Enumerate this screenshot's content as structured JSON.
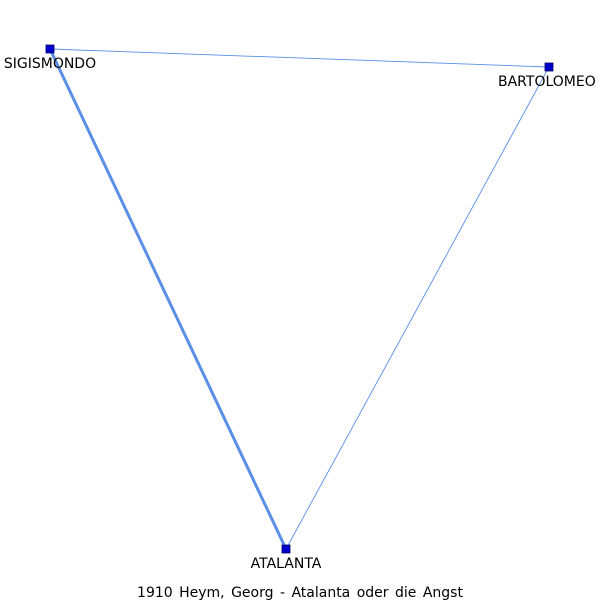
{
  "caption": "1910 Heym, Georg - Atalanta oder die Angst",
  "colors": {
    "edge": "#5b8fe6",
    "node_fill": "#0000cc",
    "node_stroke": "#000066"
  },
  "nodes": [
    {
      "id": "sigismondo",
      "label": "SIGISMONDO"
    },
    {
      "id": "bartolomeo",
      "label": "BARTOLOMEO"
    },
    {
      "id": "atalanta",
      "label": "ATALANTA"
    }
  ],
  "edges": [
    {
      "from": "sigismondo",
      "to": "atalanta",
      "weight": 3
    },
    {
      "from": "sigismondo",
      "to": "bartolomeo",
      "weight": 1
    },
    {
      "from": "bartolomeo",
      "to": "atalanta",
      "weight": 1
    }
  ]
}
